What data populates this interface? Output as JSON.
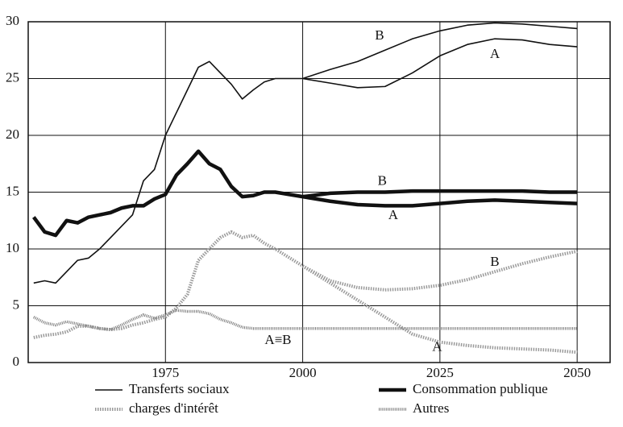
{
  "chart_data": {
    "type": "line",
    "x": [
      1951,
      1953,
      1955,
      1957,
      1959,
      1961,
      1963,
      1965,
      1967,
      1969,
      1971,
      1973,
      1975,
      1977,
      1979,
      1981,
      1983,
      1985,
      1987,
      1989,
      1991,
      1993,
      1995,
      2000,
      2005,
      2010,
      2015,
      2020,
      2025,
      2030,
      2035,
      2040,
      2045,
      2050
    ],
    "series": [
      {
        "name": "Transferts sociaux",
        "color": "#111111",
        "style": "thin",
        "values": [
          7,
          7.2,
          7,
          8,
          9,
          9.2,
          10,
          11,
          12,
          13,
          16,
          17,
          20,
          22,
          24,
          26,
          26.5,
          25.5,
          24.5,
          23.2,
          24,
          24.7,
          25,
          25,
          24.6,
          24.2,
          24.3,
          25.5,
          27,
          28,
          28.5,
          28.4,
          28,
          27.8
        ],
        "scenario_b": [
          null,
          null,
          null,
          null,
          null,
          null,
          null,
          null,
          null,
          null,
          null,
          null,
          null,
          null,
          null,
          null,
          null,
          null,
          null,
          null,
          null,
          null,
          null,
          25,
          25.8,
          26.5,
          27.5,
          28.5,
          29.2,
          29.7,
          29.9,
          29.8,
          29.6,
          29.4
        ]
      },
      {
        "name": "Consommation publique",
        "color": "#111111",
        "style": "thick",
        "values": [
          12.8,
          11.5,
          11.2,
          12.5,
          12.3,
          12.8,
          13,
          13.2,
          13.6,
          13.8,
          13.8,
          14.4,
          14.8,
          16.5,
          17.5,
          18.6,
          17.5,
          17,
          15.5,
          14.6,
          14.7,
          15,
          15,
          14.6,
          14.2,
          13.9,
          13.8,
          13.8,
          14,
          14.2,
          14.3,
          14.2,
          14.1,
          14
        ],
        "scenario_b": [
          null,
          null,
          null,
          null,
          null,
          null,
          null,
          null,
          null,
          null,
          null,
          null,
          null,
          null,
          null,
          null,
          null,
          null,
          null,
          null,
          null,
          null,
          null,
          14.6,
          14.9,
          15,
          15,
          15.1,
          15.1,
          15.1,
          15.1,
          15.1,
          15,
          15
        ]
      },
      {
        "name": "charges d'intérêt",
        "color": "#9a9a9a",
        "style": "dotted",
        "values": [
          2.2,
          2.4,
          2.5,
          2.7,
          3.2,
          3.2,
          3,
          2.9,
          3,
          3.3,
          3.5,
          3.8,
          4,
          4.8,
          6,
          9,
          10,
          11,
          11.5,
          11,
          11.2,
          10.5,
          10,
          8.5,
          7,
          5.5,
          4,
          2.5,
          1.8,
          1.5,
          1.3,
          1.2,
          1.1,
          0.9
        ],
        "scenario_b": [
          null,
          null,
          null,
          null,
          null,
          null,
          null,
          null,
          null,
          null,
          null,
          null,
          null,
          null,
          null,
          null,
          null,
          null,
          null,
          null,
          null,
          null,
          null,
          8.5,
          7.2,
          6.6,
          6.4,
          6.5,
          6.8,
          7.3,
          8,
          8.7,
          9.3,
          9.8
        ]
      },
      {
        "name": "Autres",
        "color": "#7a7a7a",
        "style": "hatched",
        "values": [
          4,
          3.5,
          3.3,
          3.6,
          3.4,
          3.2,
          3,
          2.9,
          3.3,
          3.8,
          4.2,
          3.9,
          4.2,
          4.6,
          4.5,
          4.5,
          4.3,
          3.8,
          3.5,
          3.1,
          3,
          3,
          3,
          3,
          3,
          3,
          3,
          3,
          3,
          3,
          3,
          3,
          3,
          3
        ]
      }
    ],
    "annotations": [
      {
        "text": "B",
        "x": 2014,
        "y": 28.7
      },
      {
        "text": "A",
        "x": 2035,
        "y": 27.1
      },
      {
        "text": "B",
        "x": 2014.5,
        "y": 15.9
      },
      {
        "text": "A",
        "x": 2016.5,
        "y": 12.9
      },
      {
        "text": "B",
        "x": 2035,
        "y": 8.8
      },
      {
        "text": "A≡B",
        "x": 1995.5,
        "y": 1.9
      },
      {
        "text": "A",
        "x": 2024.5,
        "y": 1.3
      }
    ],
    "xlim": [
      1950,
      2056
    ],
    "xticks": [
      1975,
      2000,
      2025,
      2050
    ],
    "ylim": [
      0,
      30
    ],
    "yticks": [
      0,
      5,
      10,
      15,
      20,
      25,
      30
    ],
    "grid": true
  }
}
